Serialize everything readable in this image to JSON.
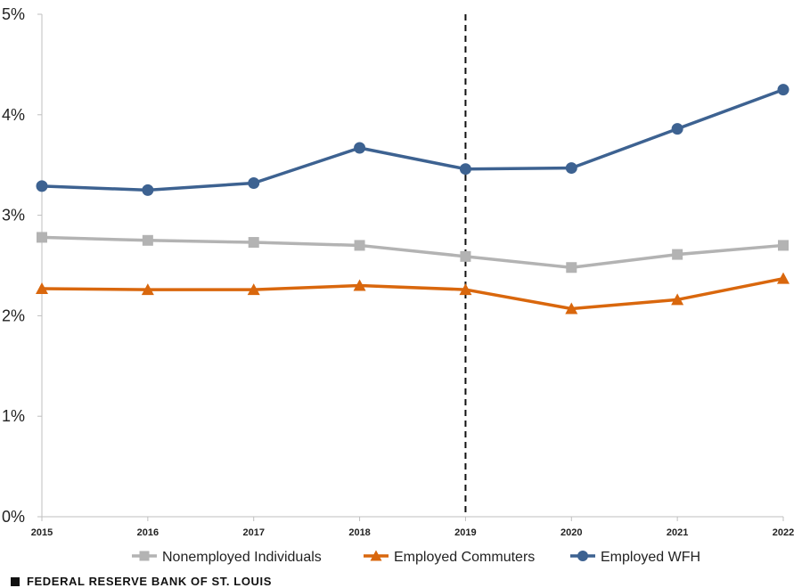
{
  "chart_data": {
    "type": "line",
    "title": "",
    "xlabel": "",
    "ylabel": "",
    "x": [
      "2015",
      "2016",
      "2017",
      "2018",
      "2019",
      "2020",
      "2021",
      "2022"
    ],
    "ylim": [
      0,
      5
    ],
    "yticks": [
      0,
      1,
      2,
      3,
      4,
      5
    ],
    "ytick_labels": [
      "0%",
      "1%",
      "2%",
      "3%",
      "4%",
      "5%"
    ],
    "series": [
      {
        "name": "Nonemployed Individuals",
        "color": "#b3b3b3",
        "marker": "square",
        "values": [
          2.78,
          2.75,
          2.73,
          2.7,
          2.59,
          2.48,
          2.61,
          2.7
        ]
      },
      {
        "name": "Employed Commuters",
        "color": "#d9670d",
        "marker": "triangle",
        "values": [
          2.27,
          2.26,
          2.26,
          2.3,
          2.26,
          2.07,
          2.16,
          2.37
        ]
      },
      {
        "name": "Employed WFH",
        "color": "#3d6291",
        "marker": "circle",
        "values": [
          3.29,
          3.25,
          3.32,
          3.67,
          3.46,
          3.47,
          3.86,
          4.25
        ]
      }
    ],
    "reference_line": {
      "x": "2019",
      "style": "dashed",
      "color": "#111111"
    },
    "legend_position": "bottom",
    "grid": false
  },
  "footer": {
    "source": "FEDERAL RESERVE BANK OF ST. LOUIS"
  }
}
